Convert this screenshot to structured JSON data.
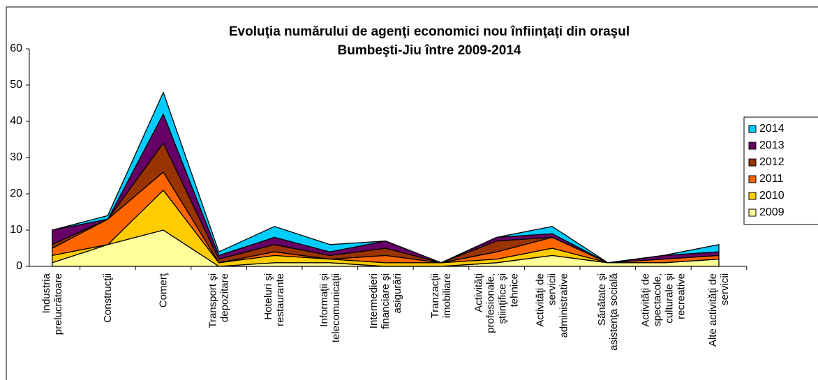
{
  "chart_data": {
    "type": "stacked_area",
    "title": "Evoluţia numărului de agenţi economici nou înfiinţaţi din oraşul Bumbeşti-Jiu între 2009-2014",
    "categories": [
      "Industria prelucrătoare",
      "Construcţii",
      "Comerţ",
      "Transport şi depozitare",
      "Hoteluri şi restaurante",
      "Informaţii şi telecomunicaţii",
      "Intermedieri financiare şi asigurări",
      "Tranzacţii imobiliare",
      "Activităţi profesionale, ştiinţifice şi tehnice",
      "Activităţi de servicii administrative",
      "Sănătate şi asistenţa socială",
      "Activităţi de spectacole, culturale şi recreative",
      "Alte activităţi de servicii"
    ],
    "series": [
      {
        "name": "2009",
        "color": "#ffff99",
        "values": [
          1,
          6,
          10,
          0,
          1,
          1,
          0,
          0,
          1,
          3,
          1,
          1,
          2
        ]
      },
      {
        "name": "2010",
        "color": "#ffcc00",
        "values": [
          2,
          0,
          11,
          1,
          2,
          1,
          1,
          1,
          1,
          2,
          0,
          0,
          0
        ]
      },
      {
        "name": "2011",
        "color": "#ff6600",
        "values": [
          2,
          7,
          5,
          0,
          1,
          0,
          2,
          0,
          2,
          3,
          0,
          1,
          1
        ]
      },
      {
        "name": "2012",
        "color": "#993300",
        "values": [
          1,
          0,
          8,
          1,
          2,
          1,
          2,
          0,
          3,
          0,
          0,
          0,
          0
        ]
      },
      {
        "name": "2013",
        "color": "#660066",
        "values": [
          4,
          0,
          8,
          1,
          2,
          1,
          2,
          0,
          1,
          1,
          0,
          1,
          1
        ]
      },
      {
        "name": "2014",
        "color": "#00ccff",
        "values": [
          0,
          1,
          6,
          1,
          3,
          2,
          0,
          0,
          0,
          2,
          0,
          0,
          2
        ]
      }
    ],
    "ylim": [
      0,
      60
    ],
    "yticks": [
      0,
      10,
      20,
      30,
      40,
      50,
      60
    ],
    "legend": "right"
  }
}
